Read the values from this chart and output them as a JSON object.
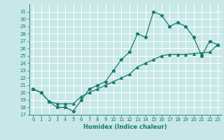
{
  "xlabel": "Humidex (Indice chaleur)",
  "bg_color": "#c8e8e8",
  "grid_color": "#ffffff",
  "line_color": "#1a7a6a",
  "xlim": [
    -0.5,
    23.5
  ],
  "ylim": [
    17,
    32
  ],
  "yticks": [
    17,
    18,
    19,
    20,
    21,
    22,
    23,
    24,
    25,
    26,
    27,
    28,
    29,
    30,
    31
  ],
  "xticks": [
    0,
    1,
    2,
    3,
    4,
    5,
    6,
    7,
    8,
    9,
    10,
    11,
    12,
    13,
    14,
    15,
    16,
    17,
    18,
    19,
    20,
    21,
    22,
    23
  ],
  "line1_x": [
    0,
    1,
    2,
    3,
    4,
    5,
    6,
    7,
    8,
    9,
    10,
    11,
    12,
    13,
    14,
    15,
    16,
    17,
    18,
    19,
    20,
    21,
    22,
    23
  ],
  "line1_y": [
    20.5,
    20.0,
    18.8,
    18.0,
    18.0,
    17.5,
    19.0,
    20.5,
    21.0,
    21.5,
    23.0,
    24.5,
    25.5,
    28.0,
    27.5,
    31.0,
    30.5,
    29.0,
    29.5,
    29.0,
    27.5,
    25.0,
    27.0,
    26.5
  ],
  "line2_x": [
    0,
    1,
    2,
    3,
    4,
    5,
    6,
    7,
    8,
    9,
    10,
    11,
    12,
    13,
    14,
    15,
    16,
    17,
    18,
    19,
    20,
    21,
    22,
    23
  ],
  "line2_y": [
    20.5,
    20.0,
    18.8,
    18.5,
    18.5,
    18.5,
    19.5,
    20.0,
    20.5,
    21.0,
    21.5,
    22.0,
    22.5,
    23.5,
    24.0,
    24.5,
    25.0,
    25.2,
    25.2,
    25.2,
    25.3,
    25.4,
    25.5,
    26.5
  ],
  "xlabel_fontsize": 6,
  "tick_fontsize": 5,
  "linewidth": 0.9,
  "marker1": "*",
  "marker1_size": 3.5,
  "marker2": "^",
  "marker2_size": 2.5
}
